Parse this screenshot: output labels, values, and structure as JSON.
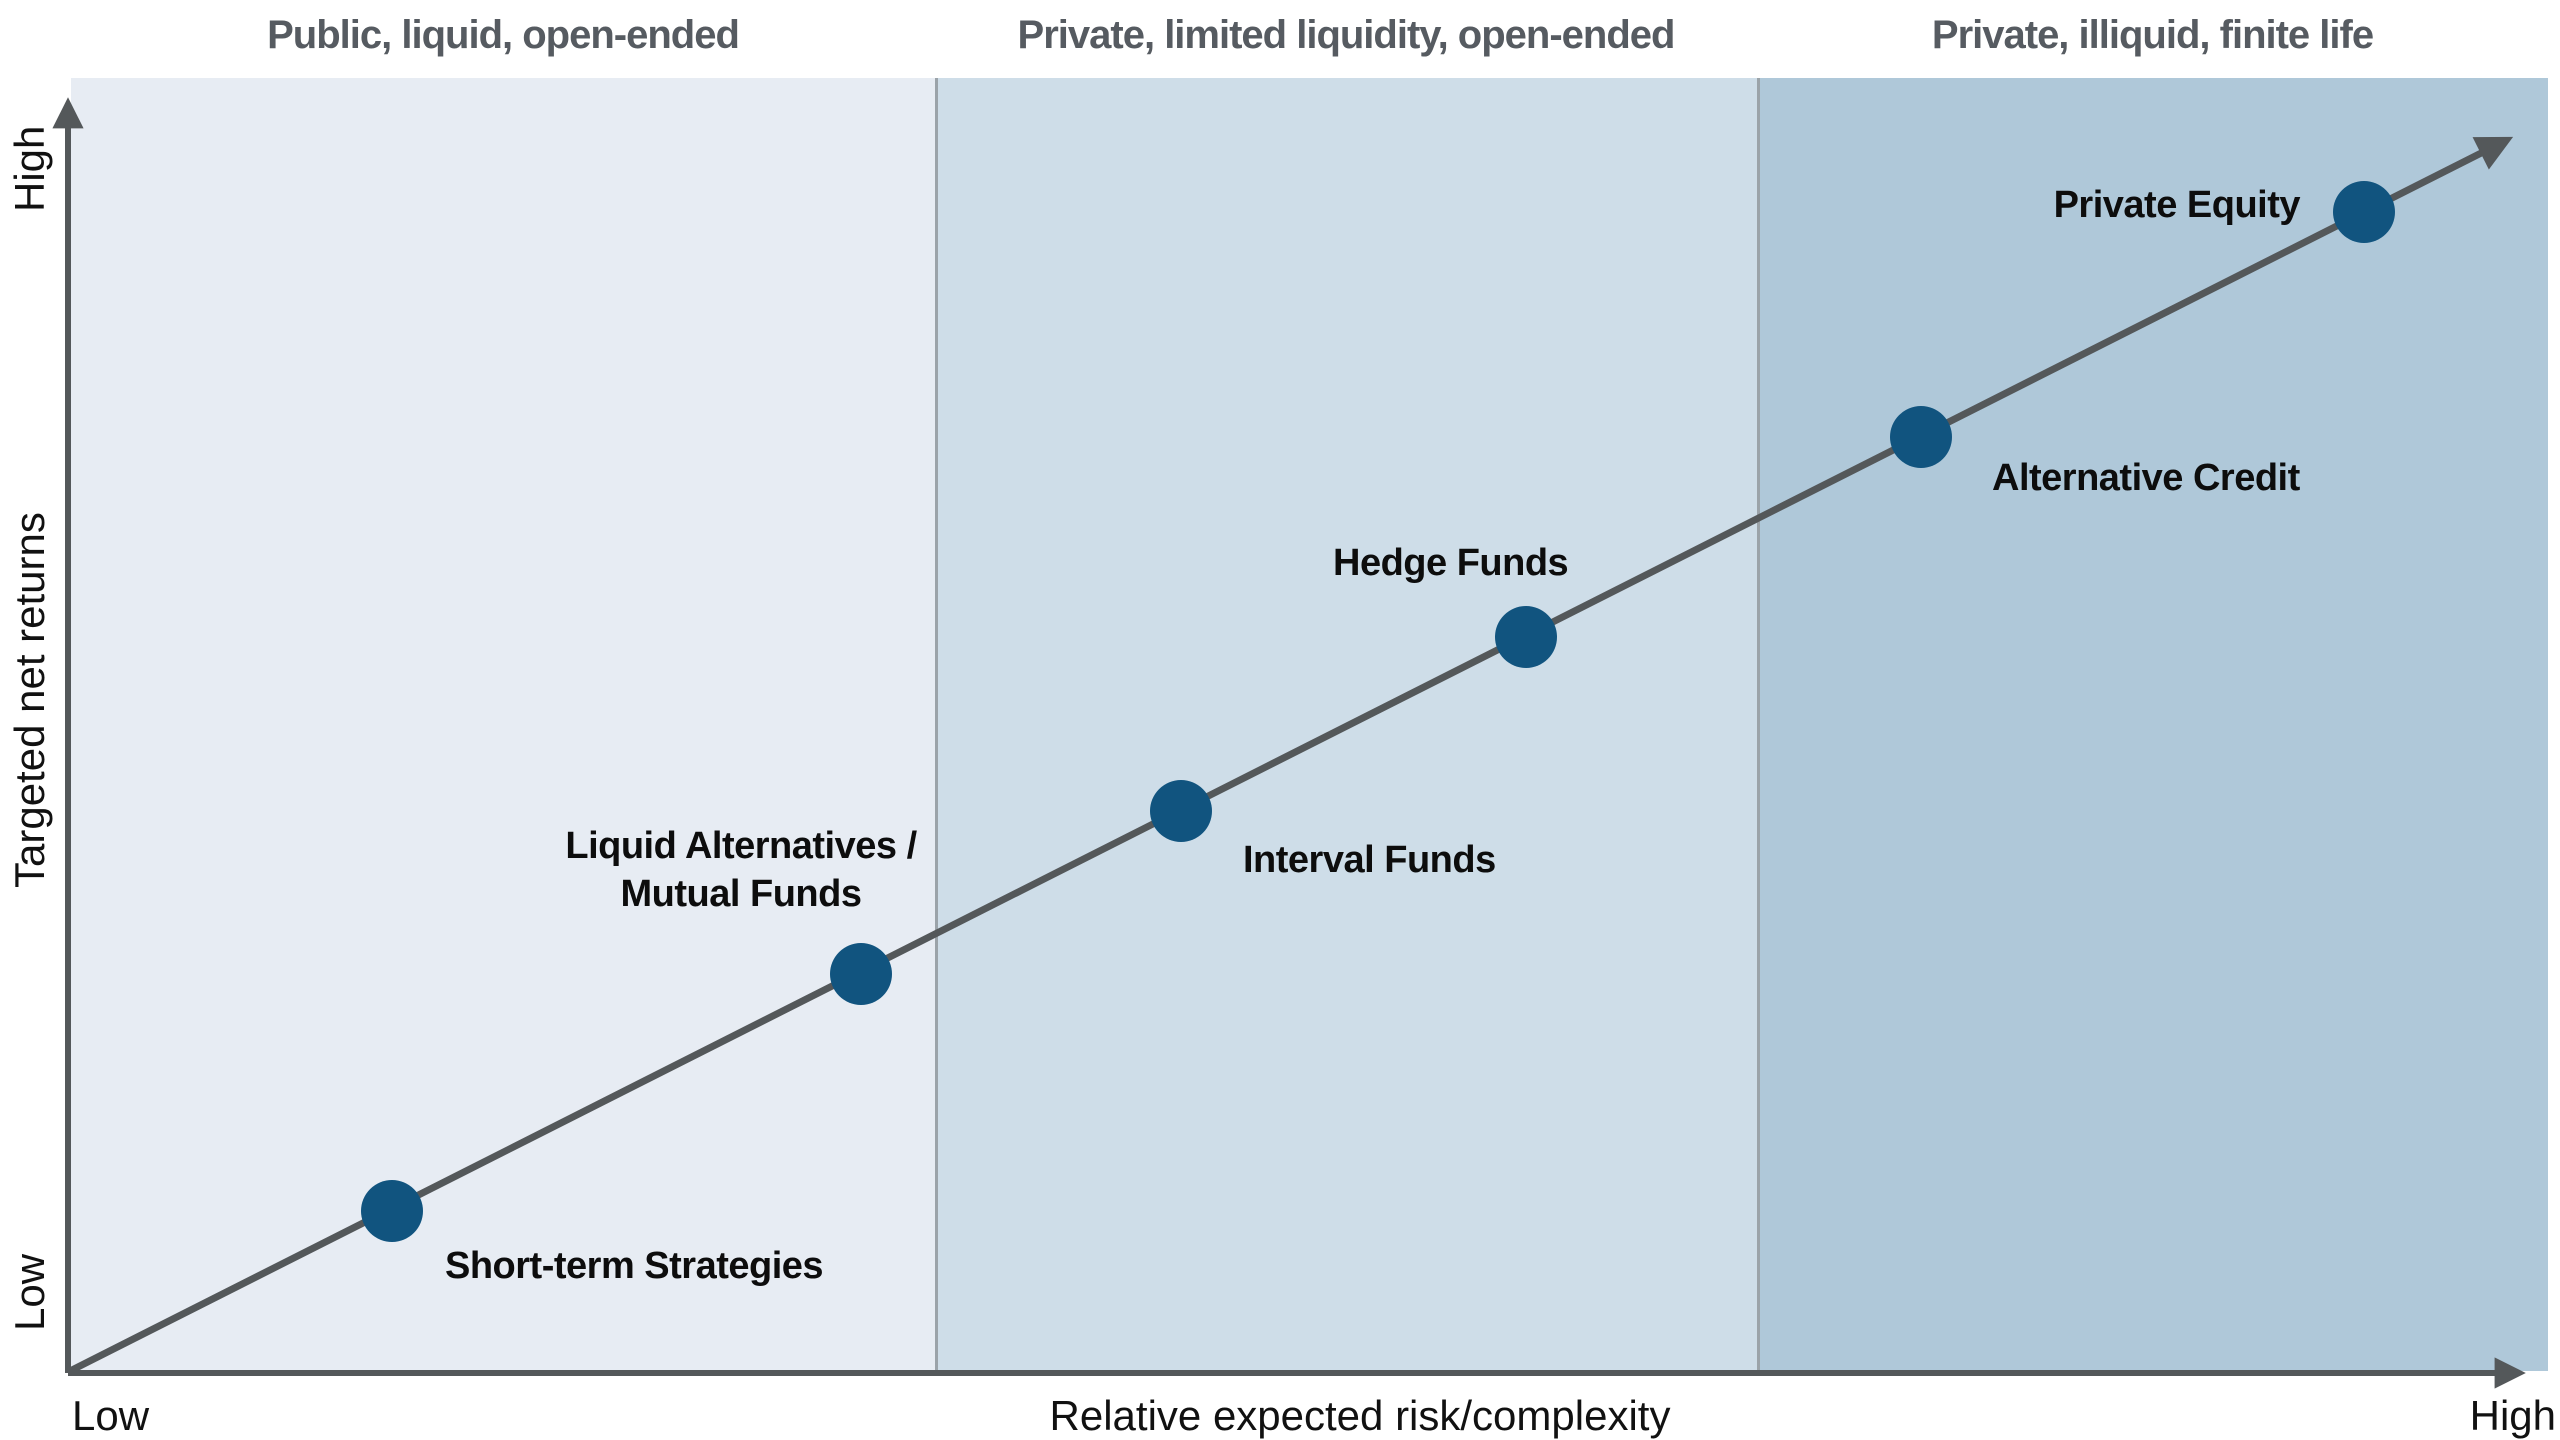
{
  "chart_data": {
    "type": "scatter",
    "title": "",
    "xlabel": "Relative expected risk/complexity",
    "ylabel": "Targeted net returns",
    "x_ticks": [
      "Low",
      "High"
    ],
    "y_ticks": [
      "Low",
      "High"
    ],
    "axis_note": "conceptual axes, no numeric scale; diagonal trend arrow from (Low,Low) to (High,High)",
    "zones": [
      {
        "label": "Public, liquid, open-ended",
        "color": "#e7ecf3"
      },
      {
        "label": "Private, limited liquidity, open-ended",
        "color": "#cedde8"
      },
      {
        "label": "Private, illiquid, finite life",
        "color": "#afc8d9"
      }
    ],
    "points": [
      {
        "label": "Short-term Strategies",
        "risk": 0.13,
        "return": 0.13
      },
      {
        "label": "Liquid Alternatives /\nMutual Funds",
        "risk": 0.32,
        "return": 0.32
      },
      {
        "label": "Interval Funds",
        "risk": 0.45,
        "return": 0.45
      },
      {
        "label": "Hedge Funds",
        "risk": 0.59,
        "return": 0.59
      },
      {
        "label": "Alternative Credit",
        "risk": 0.75,
        "return": 0.75
      },
      {
        "label": "Private Equity",
        "risk": 0.93,
        "return": 0.93
      }
    ],
    "legend": "none",
    "grid": false
  },
  "colors": {
    "zone1": "#e7ecf3",
    "zone2": "#cedde8",
    "zone3": "#afc8d9",
    "divider": "#9ba3a9",
    "line": "#54585a",
    "dot": "#11547f",
    "header_text": "#565b61",
    "label_text": "#0d0d0d"
  }
}
